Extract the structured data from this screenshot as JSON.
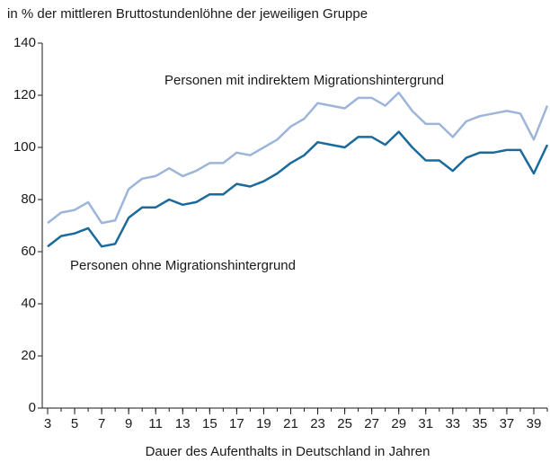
{
  "chart_data": {
    "type": "line",
    "title": "in % der mittleren Bruttostundenlöhne der jeweiligen Gruppe",
    "x_label": "Dauer des Aufenthalts in Deutschland in Jahren",
    "x": [
      3,
      4,
      5,
      6,
      7,
      8,
      9,
      10,
      11,
      12,
      13,
      14,
      15,
      16,
      17,
      18,
      19,
      20,
      21,
      22,
      23,
      24,
      25,
      26,
      27,
      28,
      29,
      30,
      31,
      32,
      33,
      34,
      35,
      36,
      37,
      38,
      39,
      40
    ],
    "series": [
      {
        "name": "Personen mit indirektem Migrationshintergrund",
        "color": "#9db5d9",
        "values": [
          71,
          75,
          76,
          79,
          71,
          72,
          84,
          88,
          89,
          92,
          89,
          91,
          94,
          94,
          98,
          97,
          100,
          103,
          108,
          111,
          117,
          116,
          115,
          119,
          119,
          116,
          121,
          114,
          109,
          109,
          104,
          110,
          112,
          113,
          114,
          113,
          103,
          116
        ]
      },
      {
        "name": "Personen ohne Migrationshintergrund",
        "color": "#1a6a9c",
        "values": [
          62,
          66,
          67,
          69,
          62,
          63,
          73,
          77,
          77,
          80,
          78,
          79,
          82,
          82,
          86,
          85,
          87,
          90,
          94,
          97,
          102,
          101,
          100,
          104,
          104,
          101,
          106,
          100,
          95,
          95,
          91,
          96,
          98,
          98,
          99,
          99,
          90,
          101
        ]
      }
    ],
    "xlim": [
      2.6,
      40
    ],
    "xticks": [
      3,
      5,
      7,
      9,
      11,
      13,
      15,
      17,
      19,
      21,
      23,
      25,
      27,
      29,
      31,
      33,
      35,
      37,
      39
    ],
    "ylim": [
      0,
      140
    ],
    "yticks": [
      0,
      20,
      40,
      60,
      80,
      100,
      120,
      140
    ],
    "grid": false
  }
}
